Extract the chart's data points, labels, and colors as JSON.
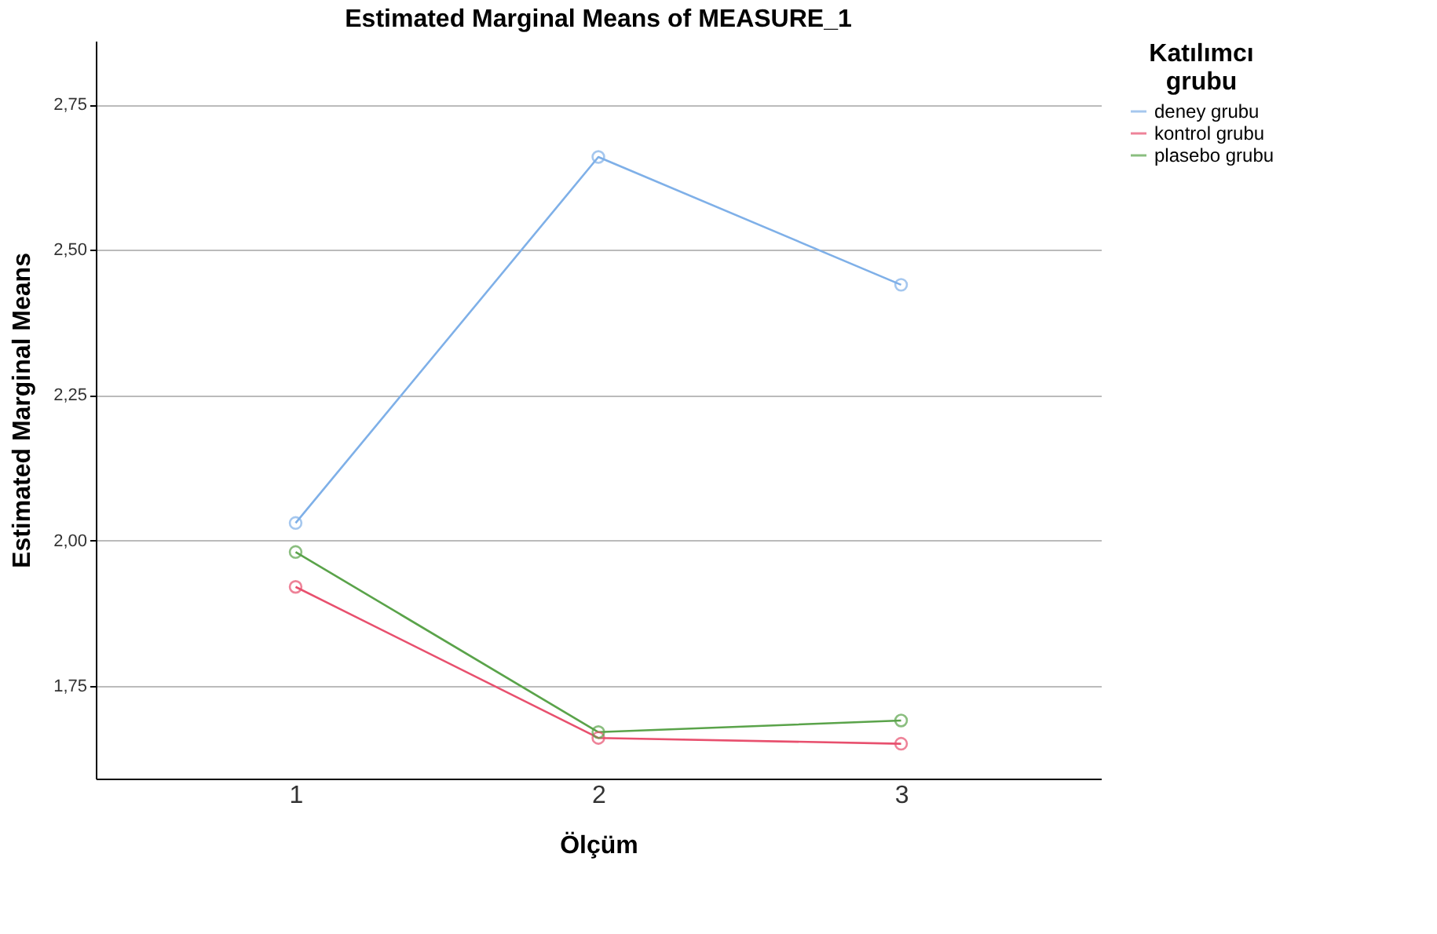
{
  "chart_data": {
    "type": "line",
    "title": "Estimated Marginal Means of MEASURE_1",
    "xlabel": "Ölçüm",
    "ylabel": "Estimated Marginal Means",
    "legend_title": "Katılımcı grubu",
    "categories": [
      "1",
      "2",
      "3"
    ],
    "series": [
      {
        "name": "deney grubu",
        "color": "#7fb0e8",
        "values": [
          2.03,
          2.66,
          2.44
        ]
      },
      {
        "name": "kontrol grubu",
        "color": "#e8506e",
        "values": [
          1.92,
          1.66,
          1.65
        ]
      },
      {
        "name": "plasebo grubu",
        "color": "#5aa34a",
        "values": [
          1.98,
          1.67,
          1.69
        ]
      }
    ],
    "ylim": [
      1.59,
      2.86
    ],
    "yticks": [
      {
        "value": 1.75,
        "label": "1,75"
      },
      {
        "value": 2.0,
        "label": "2,00"
      },
      {
        "value": 2.25,
        "label": "2,25"
      },
      {
        "value": 2.5,
        "label": "2,50"
      },
      {
        "value": 2.75,
        "label": "2,75"
      }
    ],
    "grid": "y",
    "legend": "top right",
    "marker": "circle",
    "line_style": "solid"
  }
}
